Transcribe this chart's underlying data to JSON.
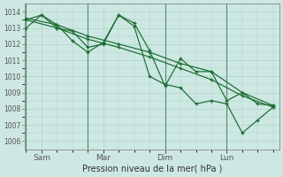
{
  "xlabel": "Pression niveau de la mer( hPa )",
  "bg_color": "#cde8e2",
  "grid_color": "#b0d4cc",
  "line_color": "#1a6b30",
  "vline_color": "#5a8a70",
  "ylim": [
    1005.5,
    1014.5
  ],
  "yticks": [
    1006,
    1007,
    1008,
    1009,
    1010,
    1011,
    1012,
    1013,
    1014
  ],
  "xlim": [
    -0.05,
    8.2
  ],
  "xtick_labels": [
    "Sam",
    "Mar",
    "Dim",
    "Lun"
  ],
  "xtick_positions": [
    0.5,
    2.5,
    4.5,
    6.5
  ],
  "vline_positions": [
    0.0,
    2.0,
    4.5,
    6.5
  ],
  "series": [
    {
      "x": [
        0.0,
        1.0,
        2.0,
        3.0,
        4.0,
        5.0,
        6.0,
        7.0,
        8.0
      ],
      "y": [
        1013.6,
        1013.2,
        1012.5,
        1012.0,
        1011.5,
        1010.8,
        1010.3,
        1009.0,
        1008.2
      ]
    },
    {
      "x": [
        0.0,
        1.0,
        2.0,
        3.0,
        4.0,
        5.0,
        6.0,
        7.0,
        8.0
      ],
      "y": [
        1013.5,
        1013.0,
        1012.3,
        1011.8,
        1011.2,
        1010.5,
        1009.8,
        1008.8,
        1008.1
      ]
    },
    {
      "x": [
        0.0,
        0.5,
        1.0,
        1.5,
        2.0,
        2.5,
        3.0,
        3.5,
        4.0,
        4.5,
        5.0,
        5.5,
        6.0,
        6.5,
        7.0,
        7.5,
        8.0
      ],
      "y": [
        1013.5,
        1013.8,
        1013.2,
        1012.2,
        1011.5,
        1012.1,
        1013.8,
        1013.3,
        1011.6,
        1009.4,
        1011.1,
        1010.3,
        1010.3,
        1008.5,
        1009.0,
        1008.3,
        1008.2
      ]
    },
    {
      "x": [
        0.0,
        0.5,
        1.0,
        1.5,
        2.0,
        2.5,
        3.0,
        3.5,
        4.0,
        4.5,
        5.0,
        5.5,
        6.0,
        6.5,
        7.0,
        7.5,
        8.0
      ],
      "y": [
        1013.0,
        1013.8,
        1013.0,
        1012.8,
        1011.8,
        1012.0,
        1013.8,
        1013.1,
        1010.0,
        1009.5,
        1009.3,
        1008.3,
        1008.5,
        1008.3,
        1006.5,
        1007.3,
        1008.1
      ]
    }
  ]
}
